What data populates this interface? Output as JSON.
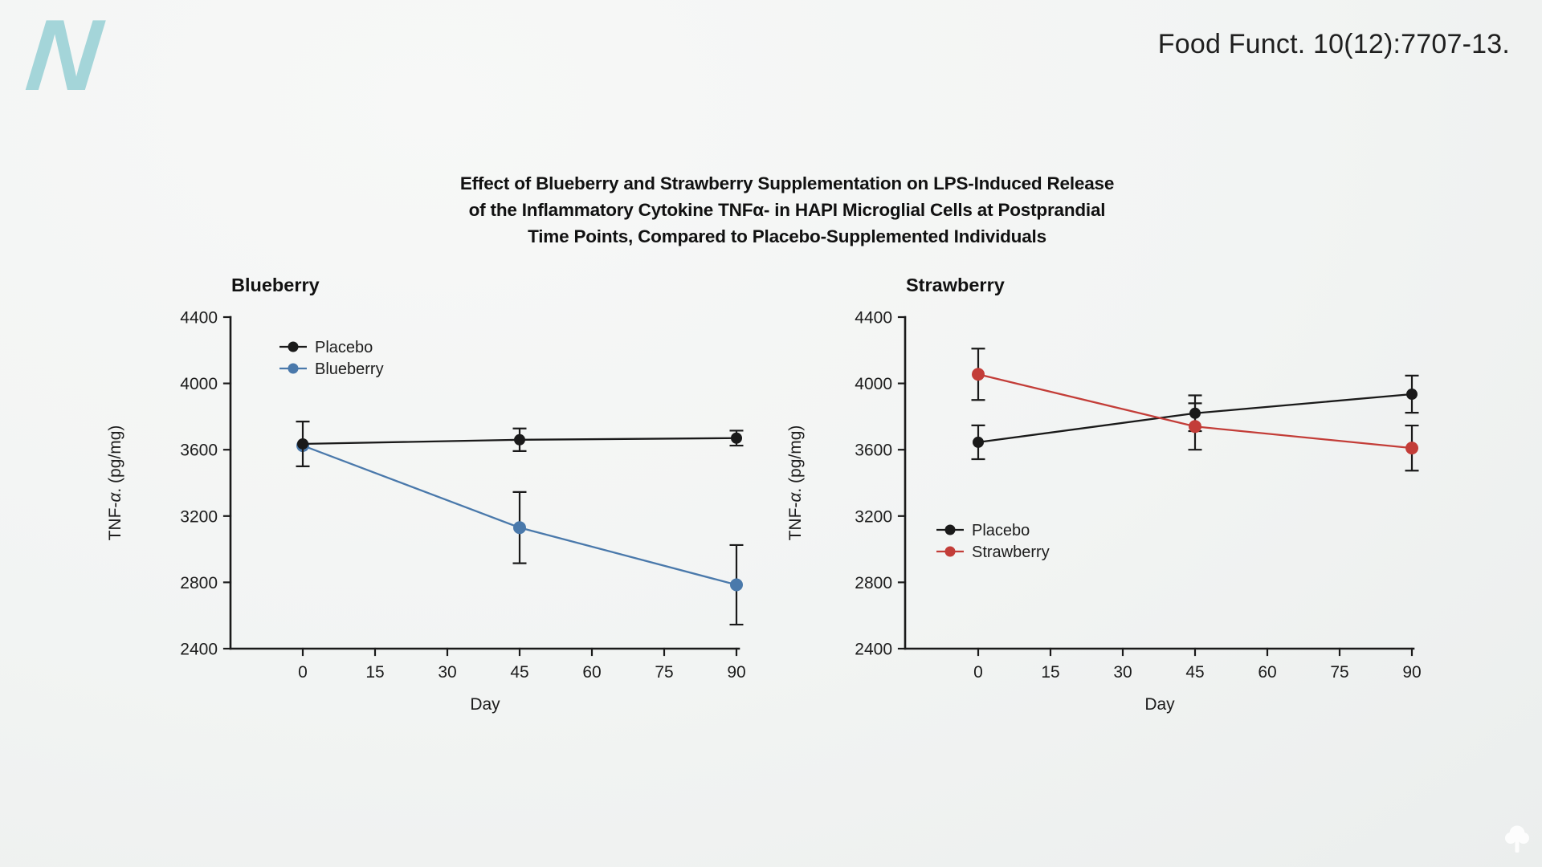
{
  "header": {
    "citation": "Food Funct. 10(12):7707-13."
  },
  "title": {
    "lines": [
      "Effect of Blueberry and Strawberry Supplementation on LPS-Induced Release",
      "of the Inflammatory Cytokine TNFα- in HAPI Microglial Cells at Postprandial",
      "Time Points, Compared to Placebo-Supplemented Individuals"
    ]
  },
  "branding": {
    "logo_letter": "N",
    "logo_color": "#a4d5d9",
    "corner_icon": "tree-icon",
    "corner_icon_color": "#ffffff"
  },
  "colors": {
    "axis_black": "#1a1a1a",
    "text": "#1c1c1c",
    "placebo": "#1a1a1a",
    "blueberry": "#4a79ab",
    "strawberry": "#c33d38"
  },
  "chart_data": [
    {
      "type": "line",
      "title": "Blueberry",
      "xlabel": "Day",
      "ylabel": "TNF-α. (pg/mg)",
      "x": [
        0,
        45,
        90
      ],
      "x_ticks": [
        0,
        15,
        30,
        45,
        60,
        75,
        90
      ],
      "y_ticks": [
        2400,
        2800,
        3200,
        3600,
        4000,
        4400
      ],
      "ylim": [
        2400,
        4400
      ],
      "grid": false,
      "legend_position": "upper-left",
      "series": [
        {
          "name": "Placebo",
          "color": "#1a1a1a",
          "values": [
            3635,
            3660,
            3670
          ],
          "errors": [
            135,
            68,
            45
          ]
        },
        {
          "name": "Blueberry",
          "color": "#4a79ab",
          "values": [
            3625,
            3130,
            2785
          ],
          "errors": [
            0,
            215,
            240
          ]
        }
      ]
    },
    {
      "type": "line",
      "title": "Strawberry",
      "xlabel": "Day",
      "ylabel": "TNF-α. (pg/mg)",
      "x": [
        0,
        45,
        90
      ],
      "x_ticks": [
        0,
        15,
        30,
        45,
        60,
        75,
        90
      ],
      "y_ticks": [
        2400,
        2800,
        3200,
        3600,
        4000,
        4400
      ],
      "ylim": [
        2400,
        4400
      ],
      "grid": false,
      "legend_position": "lower-left",
      "series": [
        {
          "name": "Placebo",
          "color": "#1a1a1a",
          "values": [
            3645,
            3820,
            3935
          ],
          "errors": [
            102,
            108,
            112
          ]
        },
        {
          "name": "Strawberry",
          "color": "#c33d38",
          "values": [
            4055,
            3740,
            3610
          ],
          "errors": [
            155,
            140,
            136
          ]
        }
      ]
    }
  ]
}
